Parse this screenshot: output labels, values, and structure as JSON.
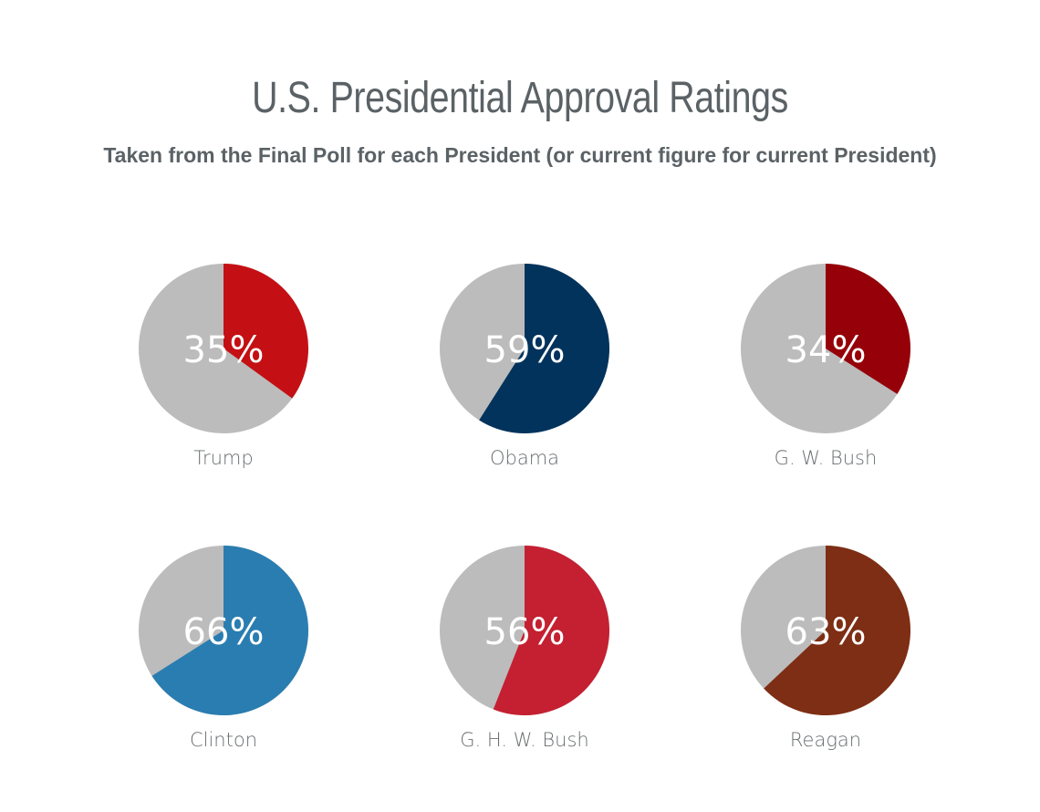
{
  "header": {
    "title": "U.S. Presidential Approval Ratings",
    "subtitle": "Taken from the Final Poll for each President (or current figure for current President)"
  },
  "chart_data": {
    "type": "pie",
    "title": "U.S. Presidential Approval Ratings",
    "subtitle": "Taken from the Final Poll for each President (or current figure for current President)",
    "remainder_color": "#bcbcbc",
    "items": [
      {
        "name": "Trump",
        "value": 35,
        "label": "35%",
        "color": "#c41014"
      },
      {
        "name": "Obama",
        "value": 59,
        "label": "59%",
        "color": "#02335c"
      },
      {
        "name": "G. W. Bush",
        "value": 34,
        "label": "34%",
        "color": "#960009"
      },
      {
        "name": "Clinton",
        "value": 66,
        "label": "66%",
        "color": "#2a7db0"
      },
      {
        "name": "G. H. W. Bush",
        "value": 56,
        "label": "56%",
        "color": "#c42032"
      },
      {
        "name": "Reagan",
        "value": 63,
        "label": "63%",
        "color": "#7e2e14"
      }
    ]
  }
}
